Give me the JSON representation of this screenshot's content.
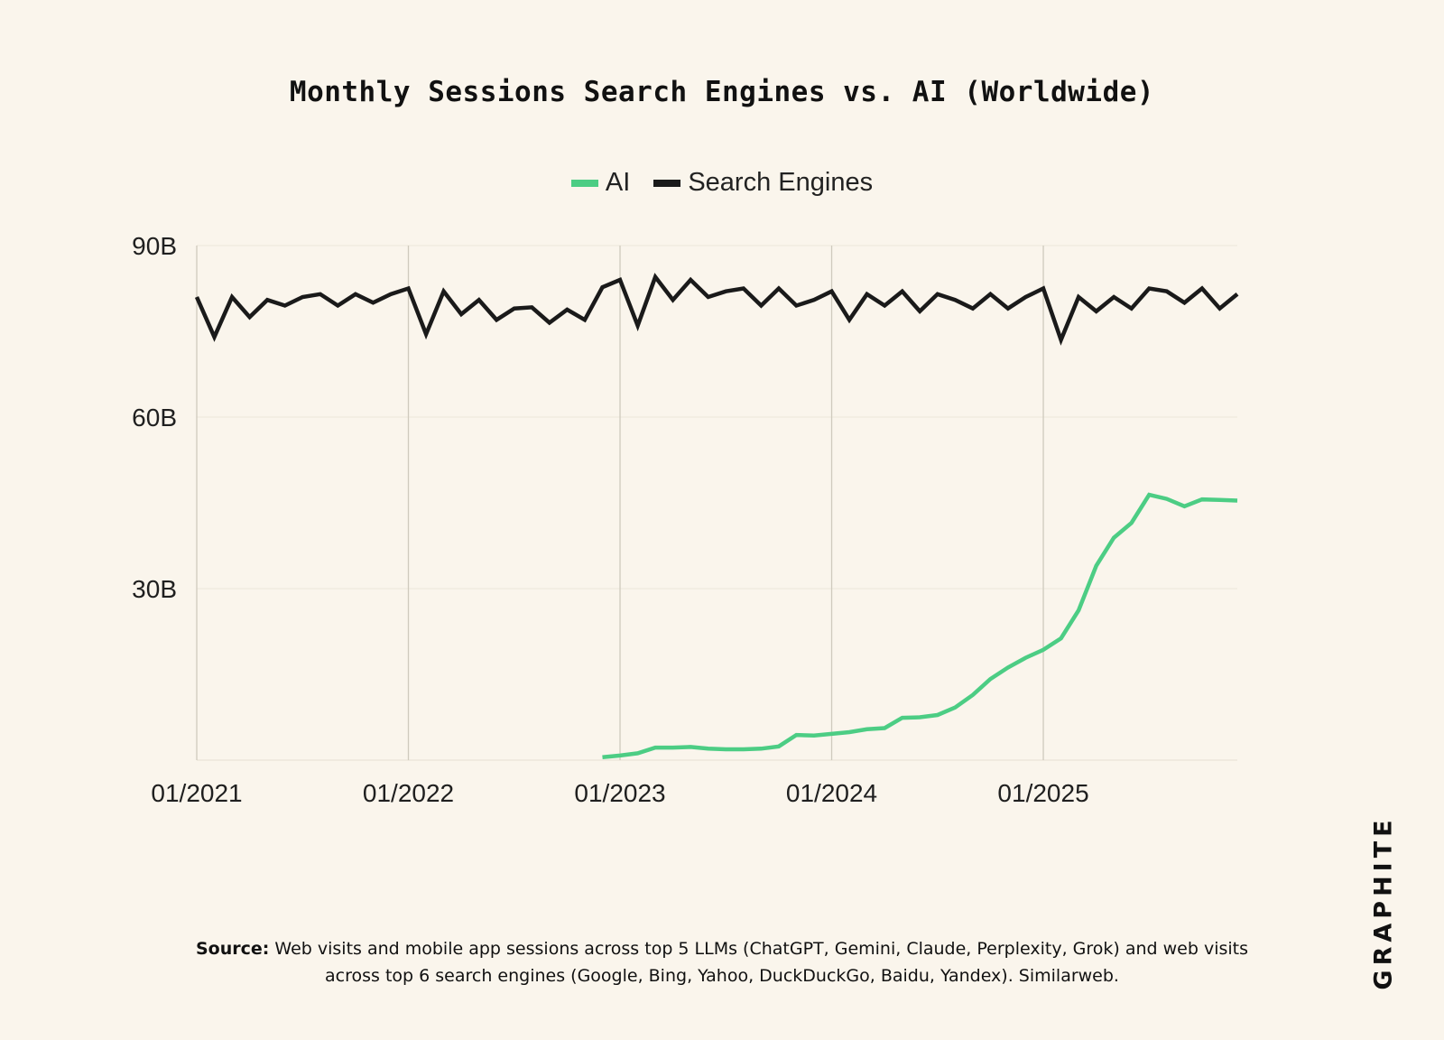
{
  "chart_data": {
    "type": "line",
    "title": "Monthly Sessions Search Engines vs. AI (Worldwide)",
    "xlabel": "",
    "ylabel": "",
    "x_range": [
      0,
      59
    ],
    "ylim": [
      0,
      90
    ],
    "y_ticks": [
      {
        "value": 30,
        "label": "30B"
      },
      {
        "value": 60,
        "label": "60B"
      },
      {
        "value": 90,
        "label": "90B"
      }
    ],
    "x_ticks": [
      {
        "index": 0,
        "label": "01/2021"
      },
      {
        "index": 12,
        "label": "01/2022"
      },
      {
        "index": 24,
        "label": "01/2023"
      },
      {
        "index": 36,
        "label": "01/2024"
      },
      {
        "index": 48,
        "label": "01/2025"
      }
    ],
    "grid": "vertical at year starts, horizontal at y ticks",
    "legend_position": "top-center",
    "series": [
      {
        "name": "AI",
        "color": "#4ccd84",
        "start_index": 23,
        "values": [
          0.5,
          0.8,
          1.2,
          2.2,
          2.2,
          2.3,
          2.0,
          1.9,
          1.9,
          2.0,
          2.4,
          4.4,
          4.3,
          4.6,
          4.9,
          5.4,
          5.6,
          7.4,
          7.5,
          7.9,
          9.2,
          11.4,
          14.2,
          16.2,
          17.9,
          19.3,
          21.3,
          26.2,
          34.0,
          38.9,
          41.5,
          46.4,
          45.7,
          44.4,
          45.6,
          45.5,
          45.4
        ]
      },
      {
        "name": "Search Engines",
        "color": "#1a1a1a",
        "start_index": 0,
        "values": [
          81,
          74,
          81,
          77.5,
          80.5,
          79.5,
          81,
          81.5,
          79.5,
          81.5,
          80,
          81.5,
          82.5,
          74.5,
          82,
          78,
          80.5,
          77,
          79,
          79.2,
          76.5,
          78.8,
          77,
          82.7,
          84,
          76,
          84.5,
          80.5,
          84,
          81,
          82,
          82.5,
          79.5,
          82.5,
          79.5,
          80.5,
          82,
          77,
          81.5,
          79.5,
          82,
          78.5,
          81.5,
          80.5,
          79,
          81.5,
          79,
          81,
          82.5,
          73.5,
          81,
          78.5,
          81,
          79,
          82.5,
          82,
          80,
          82.5,
          79,
          81.5
        ]
      }
    ]
  },
  "source": {
    "label": "Source:",
    "text": "Web visits and mobile app sessions across top 5 LLMs (ChatGPT, Gemini, Claude, Perplexity, Grok) and web visits across top 6 search engines (Google, Bing, Yahoo, DuckDuckGo, Baidu, Yandex). Similarweb."
  },
  "brand": "GRAPHITE"
}
